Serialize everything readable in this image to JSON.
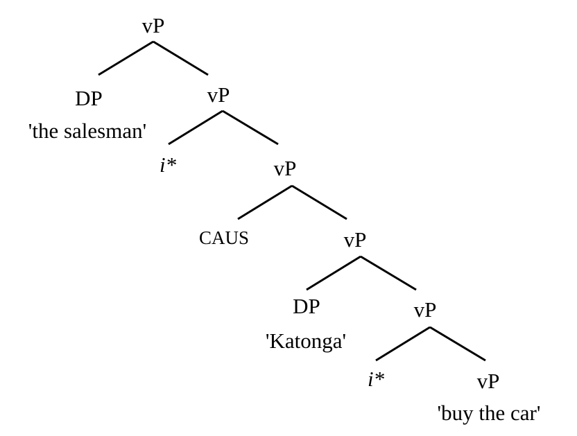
{
  "tree": {
    "root_label": "vP",
    "dp1": {
      "label": "DP",
      "gloss": "'the salesman'"
    },
    "vp2_label": "vP",
    "i1_label": "i*",
    "vp3_label": "vP",
    "caus_label": "CAUS",
    "vp4_label": "vP",
    "dp2": {
      "label": "DP",
      "gloss": "'Katonga'"
    },
    "vp5_label": "vP",
    "i2_label": "i*",
    "vp6": {
      "label": "vP",
      "gloss": "'buy the car'"
    }
  }
}
